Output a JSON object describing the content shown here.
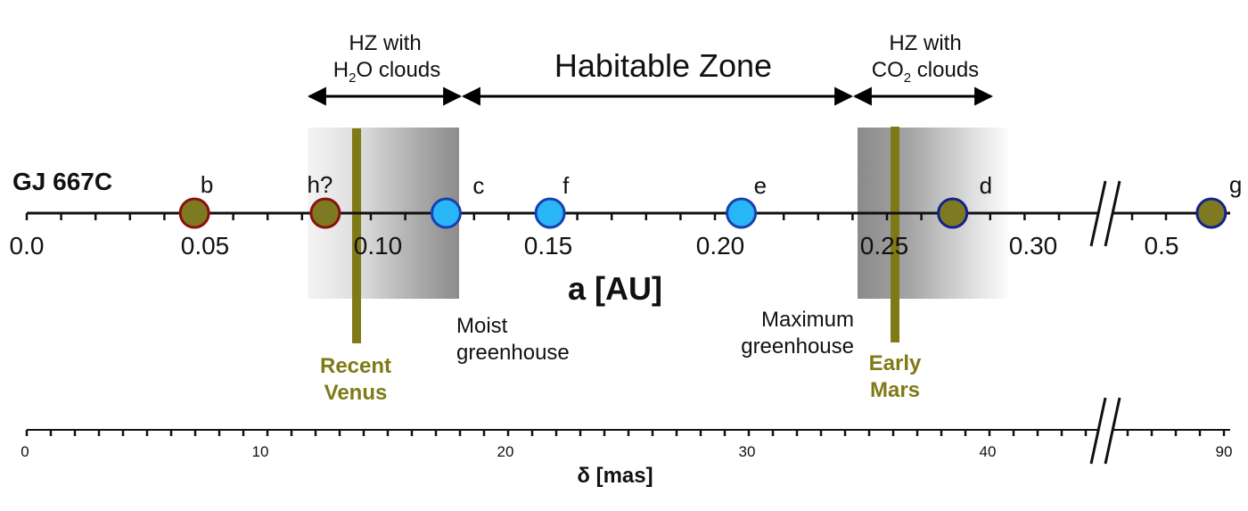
{
  "star": "GJ 667C",
  "axis_a": {
    "label": "a [AU]",
    "ticks": [
      "0.0",
      "0.05",
      "0.10",
      "0.15",
      "0.20",
      "0.25",
      "0.30",
      "0.5"
    ]
  },
  "axis_delta": {
    "label": "δ [mas]",
    "ticks": [
      "0",
      "10",
      "20",
      "30",
      "40",
      "90"
    ]
  },
  "zones": {
    "h2o_line1": "HZ with",
    "h2o_line2_pre": "H",
    "h2o_line2_sub": "2",
    "h2o_line2_post": "O clouds",
    "hz": "Habitable Zone",
    "co2_line1": "HZ with",
    "co2_line2_pre": "CO",
    "co2_line2_sub": "2",
    "co2_line2_post": " clouds"
  },
  "limits": {
    "moist_1": "Moist",
    "moist_2": "greenhouse",
    "max_1": "Maximum",
    "max_2": "greenhouse"
  },
  "markers": {
    "venus_1": "Recent",
    "venus_2": "Venus",
    "mars_1": "Early",
    "mars_2": "Mars"
  },
  "planets": [
    {
      "name": "b",
      "a": 0.05,
      "type": "hot"
    },
    {
      "name": "h?",
      "a": 0.089,
      "type": "hot"
    },
    {
      "name": "c",
      "a": 0.125,
      "type": "habitable"
    },
    {
      "name": "f",
      "a": 0.156,
      "type": "habitable"
    },
    {
      "name": "e",
      "a": 0.213,
      "type": "habitable"
    },
    {
      "name": "d",
      "a": 0.276,
      "type": "cold"
    },
    {
      "name": "g",
      "a": 0.549,
      "type": "cold"
    }
  ],
  "colors": {
    "hot_fill": "#7d7a22",
    "hot_stroke": "#8b1010",
    "habitable_fill": "#29b6f6",
    "habitable_stroke": "#1a3fb0",
    "cold_fill": "#7d7a22",
    "cold_stroke": "#14228a",
    "marker_olive": "#7f7a16"
  }
}
